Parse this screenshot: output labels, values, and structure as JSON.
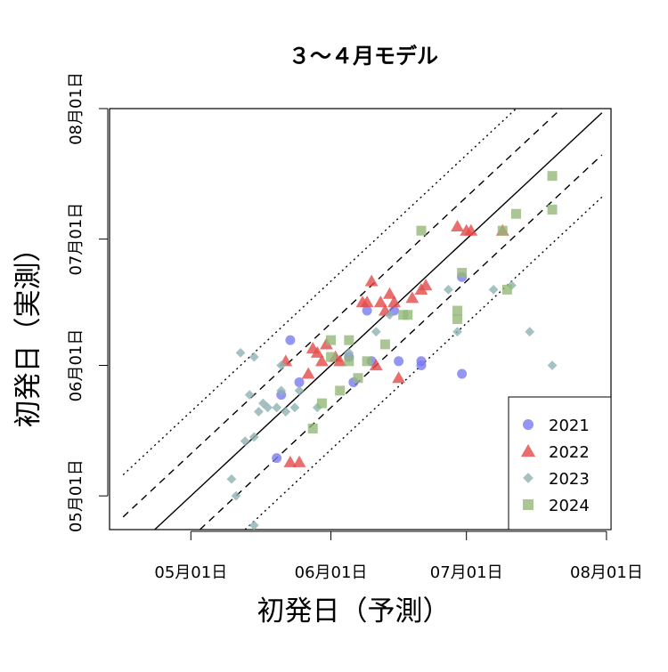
{
  "chart_data": {
    "type": "scatter",
    "title": "３〜４月モデル",
    "xlabel": "初発日（予測）",
    "ylabel": "初発日（実測）",
    "x_ticks": [
      {
        "label": "05月01日",
        "value": "2000-05-01"
      },
      {
        "label": "06月01日",
        "value": "2000-06-01"
      },
      {
        "label": "07月01日",
        "value": "2000-07-01"
      },
      {
        "label": "08月01日",
        "value": "2000-08-01"
      }
    ],
    "y_ticks": [
      {
        "label": "05月01日",
        "value": "2000-05-01"
      },
      {
        "label": "06月01日",
        "value": "2000-06-01"
      },
      {
        "label": "07月01日",
        "value": "2000-07-01"
      },
      {
        "label": "08月01日",
        "value": "2000-08-01"
      }
    ],
    "xlim": [
      "2000-04-13",
      "2000-08-02"
    ],
    "ylim": [
      "2000-04-23",
      "2000-08-01"
    ],
    "grid": false,
    "legend_position": "bottom-right",
    "reference_lines": [
      {
        "style": "solid",
        "offset_days": 0
      },
      {
        "style": "dashed",
        "offset_days": 10
      },
      {
        "style": "dashed",
        "offset_days": -10
      },
      {
        "style": "dotted",
        "offset_days": 20
      },
      {
        "style": "dotted",
        "offset_days": -20
      }
    ],
    "series": [
      {
        "name": "2021",
        "color": "#7b7bf0",
        "marker": "circle",
        "points": [
          [
            "2000-05-20",
            "2000-05-10"
          ],
          [
            "2000-05-21",
            "2000-05-25"
          ],
          [
            "2000-05-23",
            "2000-06-07"
          ],
          [
            "2000-05-25",
            "2000-05-28"
          ],
          [
            "2000-06-05",
            "2000-06-03"
          ],
          [
            "2000-06-06",
            "2000-05-28"
          ],
          [
            "2000-06-09",
            "2000-06-14"
          ],
          [
            "2000-06-10",
            "2000-06-02"
          ],
          [
            "2000-06-15",
            "2000-06-14"
          ],
          [
            "2000-06-16",
            "2000-06-02"
          ],
          [
            "2000-06-21",
            "2000-06-02"
          ],
          [
            "2000-06-21",
            "2000-06-01"
          ],
          [
            "2000-06-30",
            "2000-06-22"
          ],
          [
            "2000-06-30",
            "2000-05-30"
          ]
        ]
      },
      {
        "name": "2022",
        "color": "#e34b4b",
        "marker": "triangle",
        "points": [
          [
            "2000-05-22",
            "2000-06-02"
          ],
          [
            "2000-05-23",
            "2000-05-09"
          ],
          [
            "2000-05-25",
            "2000-05-09"
          ],
          [
            "2000-05-27",
            "2000-05-30"
          ],
          [
            "2000-05-28",
            "2000-06-05"
          ],
          [
            "2000-05-29",
            "2000-06-04"
          ],
          [
            "2000-05-30",
            "2000-06-02"
          ],
          [
            "2000-05-31",
            "2000-06-06"
          ],
          [
            "2000-06-02",
            "2000-06-03"
          ],
          [
            "2000-06-03",
            "2000-06-02"
          ],
          [
            "2000-06-08",
            "2000-06-16"
          ],
          [
            "2000-06-09",
            "2000-06-16"
          ],
          [
            "2000-06-10",
            "2000-06-21"
          ],
          [
            "2000-06-11",
            "2000-06-01"
          ],
          [
            "2000-06-12",
            "2000-06-16"
          ],
          [
            "2000-06-13",
            "2000-06-14"
          ],
          [
            "2000-06-14",
            "2000-06-18"
          ],
          [
            "2000-06-15",
            "2000-06-16"
          ],
          [
            "2000-06-16",
            "2000-05-29"
          ],
          [
            "2000-06-19",
            "2000-06-17"
          ],
          [
            "2000-06-21",
            "2000-06-19"
          ],
          [
            "2000-06-22",
            "2000-06-20"
          ],
          [
            "2000-06-29",
            "2000-07-04"
          ],
          [
            "2000-07-01",
            "2000-07-03"
          ],
          [
            "2000-07-02",
            "2000-07-03"
          ],
          [
            "2000-07-09",
            "2000-07-03"
          ]
        ]
      },
      {
        "name": "2023",
        "color": "#8fb2b1",
        "marker": "diamond",
        "points": [
          [
            "2000-05-10",
            "2000-05-05"
          ],
          [
            "2000-05-11",
            "2000-05-01"
          ],
          [
            "2000-05-12",
            "2000-06-04"
          ],
          [
            "2000-05-13",
            "2000-05-14"
          ],
          [
            "2000-05-14",
            "2000-05-25"
          ],
          [
            "2000-05-15",
            "2000-04-24"
          ],
          [
            "2000-05-15",
            "2000-05-15"
          ],
          [
            "2000-05-15",
            "2000-06-03"
          ],
          [
            "2000-05-16",
            "2000-05-21"
          ],
          [
            "2000-05-17",
            "2000-05-23"
          ],
          [
            "2000-05-18",
            "2000-05-22"
          ],
          [
            "2000-05-20",
            "2000-05-22"
          ],
          [
            "2000-05-21",
            "2000-06-01"
          ],
          [
            "2000-05-21",
            "2000-05-26"
          ],
          [
            "2000-05-22",
            "2000-05-21"
          ],
          [
            "2000-05-24",
            "2000-05-22"
          ],
          [
            "2000-05-25",
            "2000-05-26"
          ],
          [
            "2000-05-29",
            "2000-05-22"
          ],
          [
            "2000-06-05",
            "2000-06-04"
          ],
          [
            "2000-06-11",
            "2000-06-09"
          ],
          [
            "2000-06-14",
            "2000-06-13"
          ],
          [
            "2000-06-27",
            "2000-06-19"
          ],
          [
            "2000-06-29",
            "2000-06-09"
          ],
          [
            "2000-07-07",
            "2000-06-19"
          ],
          [
            "2000-07-11",
            "2000-06-20"
          ],
          [
            "2000-07-15",
            "2000-06-09"
          ],
          [
            "2000-07-20",
            "2000-06-01"
          ]
        ]
      },
      {
        "name": "2024",
        "color": "#93b879",
        "marker": "square",
        "points": [
          [
            "2000-05-28",
            "2000-05-17"
          ],
          [
            "2000-05-30",
            "2000-05-23"
          ],
          [
            "2000-06-01",
            "2000-06-07"
          ],
          [
            "2000-06-01",
            "2000-06-03"
          ],
          [
            "2000-06-03",
            "2000-05-26"
          ],
          [
            "2000-06-05",
            "2000-06-02"
          ],
          [
            "2000-06-05",
            "2000-06-07"
          ],
          [
            "2000-06-07",
            "2000-05-29"
          ],
          [
            "2000-06-09",
            "2000-06-02"
          ],
          [
            "2000-06-13",
            "2000-06-06"
          ],
          [
            "2000-06-17",
            "2000-06-13"
          ],
          [
            "2000-06-18",
            "2000-06-13"
          ],
          [
            "2000-06-21",
            "2000-07-03"
          ],
          [
            "2000-06-29",
            "2000-06-14"
          ],
          [
            "2000-06-29",
            "2000-06-12"
          ],
          [
            "2000-06-30",
            "2000-06-23"
          ],
          [
            "2000-07-09",
            "2000-07-03"
          ],
          [
            "2000-07-10",
            "2000-06-19"
          ],
          [
            "2000-07-12",
            "2000-07-07"
          ],
          [
            "2000-07-20",
            "2000-07-16"
          ],
          [
            "2000-07-20",
            "2000-07-08"
          ]
        ]
      }
    ]
  }
}
